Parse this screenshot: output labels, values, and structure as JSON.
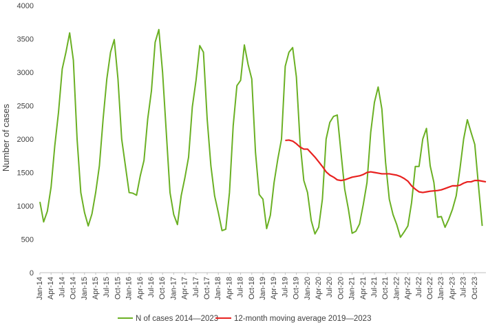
{
  "chart_data": {
    "type": "line",
    "ylabel": "Number of cases",
    "ylim": [
      0,
      4000
    ],
    "yticks": [
      0,
      500,
      1000,
      1500,
      2000,
      2500,
      3000,
      3500,
      4000
    ],
    "x_tick_labels": [
      "Jan-14",
      "Apr-14",
      "Jul-14",
      "Oct-14",
      "Jan-15",
      "Apr-15",
      "Jul-15",
      "Oct-15",
      "Jan-16",
      "Apr-16",
      "Jul-16",
      "Oct-16",
      "Jan-17",
      "Apr-17",
      "Jul-17",
      "Oct-17",
      "Jan-18",
      "Apr-18",
      "Jul-18",
      "Oct-18",
      "Jan-19",
      "Apr-19",
      "Jul-19",
      "Oct-19",
      "Jan-20",
      "Apr-20",
      "Jul-20",
      "Oct-20",
      "Jan-21",
      "Apr-21",
      "Jul-21",
      "Oct-21",
      "Jan-22",
      "Apr-22",
      "Jul-22",
      "Oct-22",
      "Jan-23",
      "Apr-23",
      "Jul-23",
      "Oct-23"
    ],
    "x_start": "2014-01",
    "grid": false,
    "legend_position": "bottom",
    "series": [
      {
        "name": "N of cases 2014—2023",
        "color": "#6ab023",
        "values": [
          1060,
          760,
          920,
          1280,
          1900,
          2400,
          3050,
          3300,
          3590,
          3180,
          2000,
          1200,
          900,
          700,
          880,
          1200,
          1600,
          2300,
          2900,
          3300,
          3490,
          2900,
          2000,
          1600,
          1200,
          1190,
          1160,
          1450,
          1680,
          2300,
          2720,
          3450,
          3640,
          3000,
          2100,
          1200,
          870,
          720,
          1150,
          1420,
          1730,
          2480,
          2880,
          3400,
          3300,
          2300,
          1600,
          1150,
          900,
          630,
          650,
          1200,
          2200,
          2800,
          2880,
          3410,
          3120,
          2900,
          1800,
          1170,
          1100,
          660,
          860,
          1350,
          1700,
          2000,
          3090,
          3300,
          3370,
          2930,
          1950,
          1380,
          1200,
          780,
          580,
          680,
          1100,
          2000,
          2250,
          2340,
          2360,
          1800,
          1250,
          950,
          590,
          620,
          730,
          1020,
          1350,
          2100,
          2550,
          2780,
          2450,
          1650,
          1100,
          870,
          720,
          530,
          610,
          700,
          1050,
          1590,
          1590,
          2000,
          2160,
          1600,
          1350,
          830,
          840,
          680,
          800,
          950,
          1150,
          1550,
          2000,
          2290,
          2100,
          1920,
          1300,
          700
        ]
      },
      {
        "name": "12-month moving average 2019—2023",
        "color": "#e8211f",
        "start_index": 66,
        "values": [
          1980,
          1985,
          1970,
          1930,
          1880,
          1850,
          1850,
          1790,
          1730,
          1660,
          1590,
          1510,
          1460,
          1430,
          1390,
          1380,
          1390,
          1410,
          1430,
          1440,
          1450,
          1470,
          1500,
          1510,
          1500,
          1490,
          1480,
          1480,
          1480,
          1470,
          1460,
          1440,
          1410,
          1370,
          1300,
          1250,
          1210,
          1200,
          1210,
          1220,
          1225,
          1230,
          1240,
          1260,
          1280,
          1300,
          1300,
          1310,
          1340,
          1360,
          1360,
          1380,
          1380,
          1370,
          1360
        ]
      }
    ]
  }
}
